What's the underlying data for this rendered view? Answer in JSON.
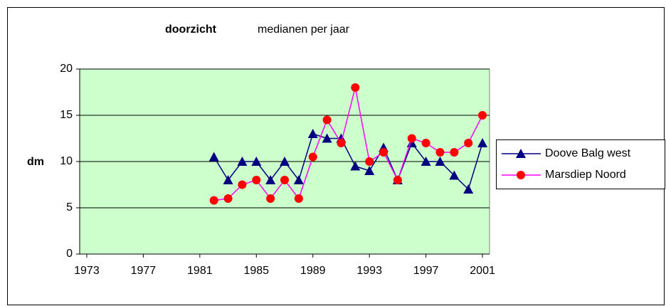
{
  "chart_data": {
    "type": "line",
    "title": "doorzicht",
    "subtitle": "medianen per jaar",
    "y_label": "dm",
    "x": [
      1982,
      1983,
      1984,
      1985,
      1986,
      1987,
      1988,
      1989,
      1990,
      1991,
      1992,
      1993,
      1994,
      1995,
      1996,
      1997,
      1998,
      1999,
      2000,
      2001
    ],
    "series": [
      {
        "name": "Doove Balg west",
        "color": "#000080",
        "marker": "triangle",
        "values": [
          10.5,
          8,
          10,
          10,
          8,
          10,
          8,
          13,
          12.5,
          12.5,
          9.5,
          9,
          11.5,
          8,
          12,
          10,
          10,
          8.5,
          7,
          12
        ]
      },
      {
        "name": "Marsdiep Noord",
        "color": "#ff00ff",
        "marker": "circle",
        "marker_color": "#ff0000",
        "values": [
          5.8,
          6,
          7.5,
          8,
          6,
          8,
          6,
          10.5,
          14.5,
          12,
          18,
          10,
          11,
          8,
          12.5,
          12,
          11,
          11,
          12,
          15
        ]
      }
    ],
    "xlim": [
      1972.5,
      2001.5
    ],
    "xticks": [
      1973,
      1977,
      1981,
      1985,
      1989,
      1993,
      1997,
      2001
    ],
    "ylim": [
      0,
      20
    ],
    "yticks": [
      0,
      5,
      10,
      15,
      20
    ],
    "grid": true,
    "legend": "right",
    "plot_background": "#ccffcc"
  }
}
